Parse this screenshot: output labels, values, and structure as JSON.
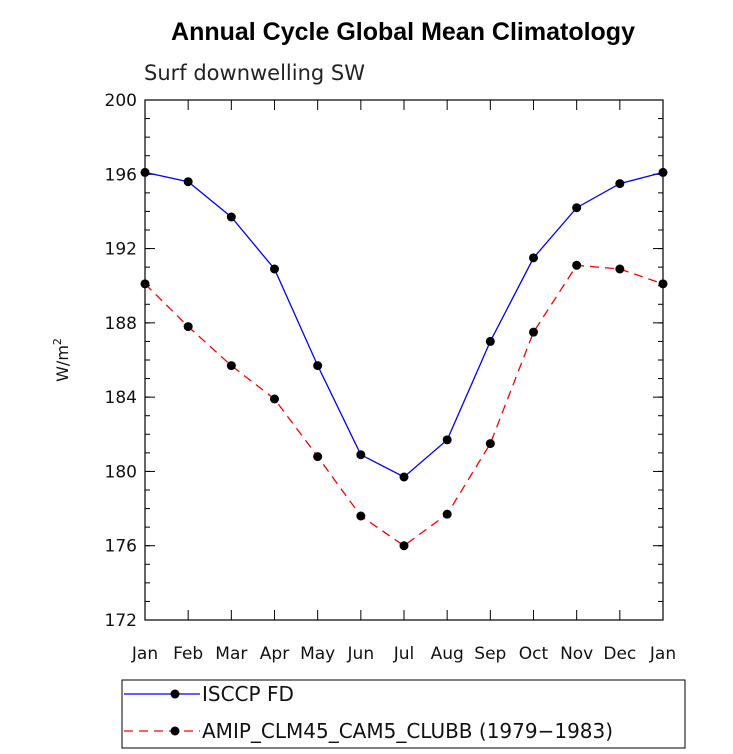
{
  "colors": {
    "isccp": "#0000ff",
    "amip": "#ff0000",
    "marker": "#000000"
  },
  "chart_data": {
    "type": "line",
    "title": "Annual Cycle Global Mean Climatology",
    "subtitle": "Surf downwelling SW",
    "ylabel": "W/m",
    "ylabel_sup": "2",
    "xlabel": "",
    "ylim": [
      172,
      200
    ],
    "yticks": [
      172,
      176,
      180,
      184,
      188,
      192,
      196,
      200
    ],
    "categories": [
      "Jan",
      "Feb",
      "Mar",
      "Apr",
      "May",
      "Jun",
      "Jul",
      "Aug",
      "Sep",
      "Oct",
      "Nov",
      "Dec",
      "Jan"
    ],
    "grid": false,
    "legend_position": "bottom",
    "series": [
      {
        "name": "ISCCP FD",
        "style": "solid",
        "values": [
          196.1,
          195.6,
          193.7,
          190.9,
          185.7,
          180.9,
          179.7,
          181.7,
          187.0,
          191.5,
          194.2,
          195.5,
          196.1
        ]
      },
      {
        "name": "AMIP_CLM45_CAM5_CLUBB (1979−1983)",
        "style": "dashed",
        "values": [
          190.1,
          187.8,
          185.7,
          183.9,
          180.8,
          177.6,
          176.0,
          177.7,
          181.5,
          187.5,
          191.1,
          190.9,
          190.1
        ]
      }
    ]
  }
}
